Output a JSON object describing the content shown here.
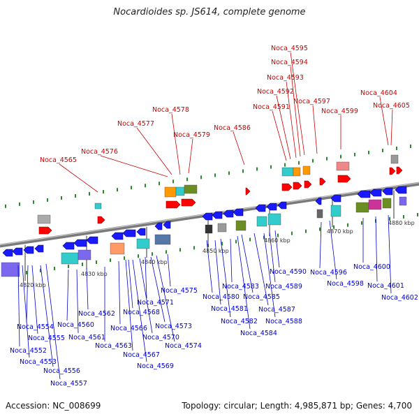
{
  "title": "Nocardioides sp. JS614, complete genome",
  "accession": "Accession: NC_008699",
  "summary": "Topology: circular; Length: 4,985,871 bp; Genes: 4,700",
  "colors": {
    "forward_label": "#cc0000",
    "reverse_label": "#0000cc",
    "forward_gene": "#ff0000",
    "reverse_gene": "#1a1aff",
    "track": "#888888",
    "tick": "#2a8a2a"
  },
  "kbp_ticks": [
    "4820 kbp",
    "4830 kbp",
    "4840 kbp",
    "4850 kbp",
    "4860 kbp",
    "4870 kbp",
    "4880 kbp"
  ],
  "forward_labels": [
    "Noca_4565",
    "Noca_4576",
    "Noca_4577",
    "Noca_4578",
    "Noca_4579",
    "Noca_4586",
    "Noca_4591",
    "Noca_4592",
    "Noca_4593",
    "Noca_4594",
    "Noca_4595",
    "Noca_4597",
    "Noca_4599",
    "Noca_4604",
    "Noca_4605"
  ],
  "reverse_labels": [
    "Noca_4552",
    "Noca_4553",
    "Noca_4554",
    "Noca_4555",
    "Noca_4556",
    "Noca_4557",
    "Noca_4560",
    "Noca_4561",
    "Noca_4562",
    "Noca_4563",
    "Noca_4566",
    "Noca_4567",
    "Noca_4568",
    "Noca_4569",
    "Noca_4570",
    "Noca_4571",
    "Noca_4573",
    "Noca_4574",
    "Noca_4575",
    "Noca_4580",
    "Noca_4581",
    "Noca_4582",
    "Noca_4583",
    "Noca_4584",
    "Noca_4585",
    "Noca_4587",
    "Noca_4588",
    "Noca_4589",
    "Noca_4590",
    "Noca_4596",
    "Noca_4598",
    "Noca_4600",
    "Noca_4601",
    "Noca_4602"
  ]
}
